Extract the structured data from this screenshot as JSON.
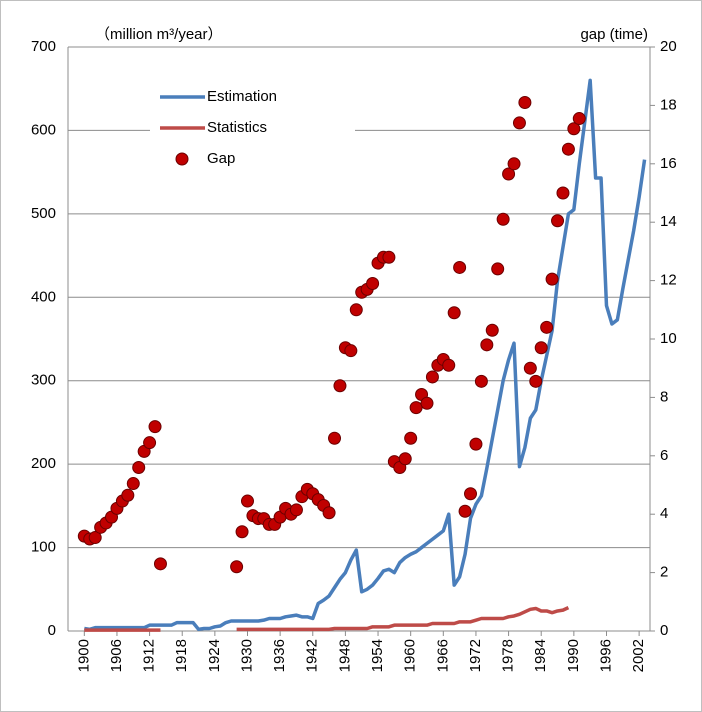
{
  "chart_data": {
    "type": "line",
    "ylabel": "（million m³/year）",
    "y2label": "gap (time)",
    "x": [
      1900,
      1901,
      1902,
      1903,
      1904,
      1905,
      1906,
      1907,
      1908,
      1909,
      1910,
      1911,
      1912,
      1913,
      1914,
      1915,
      1916,
      1917,
      1918,
      1919,
      1920,
      1921,
      1922,
      1923,
      1924,
      1925,
      1926,
      1927,
      1928,
      1929,
      1930,
      1931,
      1932,
      1933,
      1934,
      1935,
      1936,
      1937,
      1938,
      1939,
      1940,
      1941,
      1942,
      1943,
      1944,
      1945,
      1946,
      1947,
      1948,
      1949,
      1950,
      1951,
      1952,
      1953,
      1954,
      1955,
      1956,
      1957,
      1958,
      1959,
      1960,
      1961,
      1962,
      1963,
      1964,
      1965,
      1966,
      1967,
      1968,
      1969,
      1970,
      1971,
      1972,
      1973,
      1974,
      1975,
      1976,
      1977,
      1978,
      1979,
      1980,
      1981,
      1982,
      1983,
      1984,
      1985,
      1986,
      1987,
      1988,
      1989,
      1990,
      1991,
      1992,
      1993,
      1994,
      1995,
      1996,
      1997,
      1998,
      1999,
      2000,
      2001,
      2002,
      2003
    ],
    "series": [
      {
        "name": "Estimation",
        "color": "#4a7ebb",
        "type": "line",
        "values": [
          3,
          2,
          4,
          4,
          4,
          4,
          4,
          4,
          4,
          4,
          4,
          4,
          7,
          7,
          7,
          7,
          7,
          10,
          10,
          10,
          10,
          2,
          3,
          3,
          5,
          6,
          10,
          12,
          12,
          12,
          12,
          12,
          12,
          13,
          15,
          15,
          15,
          17,
          18,
          19,
          17,
          17,
          15,
          33,
          37,
          42,
          52,
          62,
          70,
          85,
          97,
          47,
          50,
          55,
          63,
          72,
          74,
          70,
          82,
          88,
          92,
          95,
          100,
          105,
          110,
          115,
          120,
          140,
          55,
          65,
          92,
          135,
          152,
          162,
          195,
          230,
          265,
          300,
          325,
          345,
          197,
          220,
          255,
          265,
          300,
          330,
          360,
          420,
          460,
          500,
          505,
          560,
          610,
          660,
          543,
          543,
          390,
          368,
          373,
          410,
          445,
          480,
          520,
          565
        ]
      },
      {
        "name": "Statistics",
        "color": "#be4b48",
        "type": "line",
        "values": [
          1,
          1,
          1,
          1,
          1,
          1,
          1,
          1,
          1,
          1,
          1,
          1,
          1,
          1,
          1,
          null,
          null,
          null,
          null,
          null,
          null,
          null,
          null,
          null,
          null,
          null,
          null,
          null,
          2,
          2,
          2,
          2,
          2,
          2,
          2,
          2,
          2,
          2,
          2,
          2,
          2,
          2,
          2,
          2,
          2,
          2,
          3,
          3,
          3,
          3,
          3,
          3,
          3,
          5,
          5,
          5,
          5,
          7,
          7,
          7,
          7,
          7,
          7,
          7,
          9,
          9,
          9,
          9,
          9,
          11,
          11,
          11,
          13,
          15,
          15,
          15,
          15,
          15,
          17,
          18,
          20,
          23,
          26,
          27,
          24,
          24,
          22,
          24,
          25,
          28,
          null,
          null,
          null,
          null,
          null,
          null,
          null,
          null,
          null,
          null,
          null,
          null,
          null,
          null
        ]
      },
      {
        "name": "Gap",
        "color": "#c00000",
        "type": "scatter",
        "axis": "y2",
        "values": [
          3.25,
          3.15,
          3.2,
          3.55,
          3.7,
          3.9,
          4.2,
          4.45,
          4.65,
          5.05,
          5.6,
          6.15,
          6.45,
          7.0,
          2.3,
          null,
          null,
          null,
          null,
          null,
          null,
          null,
          null,
          null,
          null,
          null,
          null,
          null,
          2.2,
          3.4,
          4.45,
          3.95,
          3.85,
          3.85,
          3.65,
          3.65,
          3.9,
          4.2,
          4.0,
          4.15,
          4.6,
          4.85,
          4.7,
          4.5,
          4.3,
          4.05,
          6.6,
          8.4,
          9.7,
          9.6,
          11.0,
          11.6,
          11.7,
          11.9,
          12.6,
          12.8,
          12.8,
          5.8,
          5.6,
          5.9,
          6.6,
          7.65,
          8.1,
          7.8,
          8.7,
          9.1,
          9.3,
          9.1,
          10.9,
          12.45,
          4.1,
          4.7,
          6.4,
          8.55,
          9.8,
          10.3,
          12.4,
          14.1,
          15.65,
          16.0,
          17.4,
          18.1,
          9.0,
          8.55,
          9.7,
          10.4,
          12.05,
          14.05,
          15.0,
          16.5,
          17.2,
          17.55,
          null,
          null,
          null,
          null,
          null,
          null,
          null,
          null,
          null,
          null,
          null,
          null
        ]
      }
    ],
    "xlim": [
      1897,
      2004
    ],
    "xticks": [
      1900,
      1906,
      1912,
      1918,
      1924,
      1930,
      1936,
      1942,
      1948,
      1954,
      1960,
      1966,
      1972,
      1978,
      1984,
      1990,
      1996,
      2002
    ],
    "ylim": [
      0,
      700
    ],
    "yticks": [
      0,
      100,
      200,
      300,
      400,
      500,
      600,
      700
    ],
    "y2lim": [
      0,
      20
    ],
    "y2ticks": [
      0,
      2,
      4,
      6,
      8,
      10,
      12,
      14,
      16,
      18,
      20
    ],
    "grid": true,
    "legend": "upper left"
  }
}
